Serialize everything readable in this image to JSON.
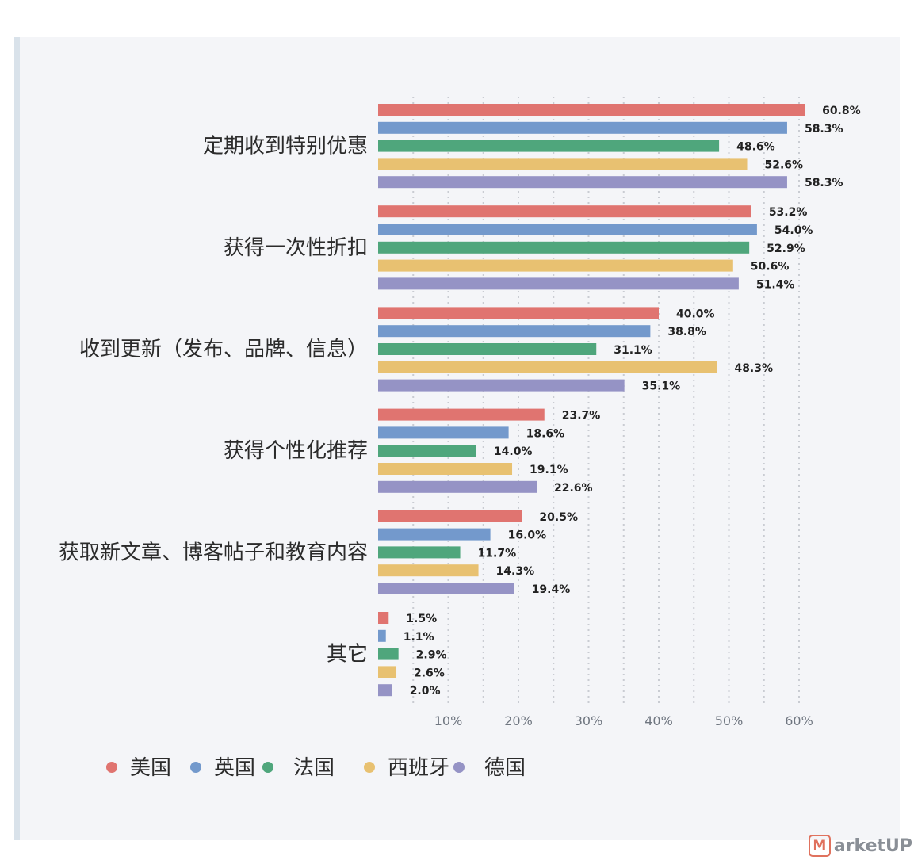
{
  "chart_data": {
    "type": "bar",
    "orientation": "horizontal",
    "categories": [
      "定期收到特别优惠",
      "获得一次性折扣",
      "收到更新（发布、品牌、信息）",
      "获得个性化推荐",
      "获取新文章、博客帖子和教育内容",
      "其它"
    ],
    "series": [
      {
        "name": "美国",
        "color": "#e07470",
        "values": [
          60.8,
          53.2,
          40.0,
          23.7,
          20.5,
          1.5
        ]
      },
      {
        "name": "英国",
        "color": "#7399cc",
        "values": [
          58.3,
          54.0,
          38.8,
          18.6,
          16.0,
          1.1
        ]
      },
      {
        "name": "法国",
        "color": "#4fa67c",
        "values": [
          48.6,
          52.9,
          31.1,
          14.0,
          11.7,
          2.9
        ]
      },
      {
        "name": "西班牙",
        "color": "#e8c171",
        "values": [
          52.6,
          50.6,
          48.3,
          19.1,
          14.3,
          2.6
        ]
      },
      {
        "name": "德国",
        "color": "#9593c5",
        "values": [
          58.3,
          51.4,
          35.1,
          22.6,
          19.4,
          2.0
        ]
      }
    ],
    "x_ticks": [
      "10%",
      "20%",
      "30%",
      "40%",
      "50%",
      "60%"
    ],
    "xlim": [
      0,
      65
    ],
    "value_suffix": "%",
    "grid": "vertical dotted",
    "legend_position": "bottom-left"
  },
  "watermark": {
    "logo_glyph": "M",
    "text": "arketUP"
  }
}
